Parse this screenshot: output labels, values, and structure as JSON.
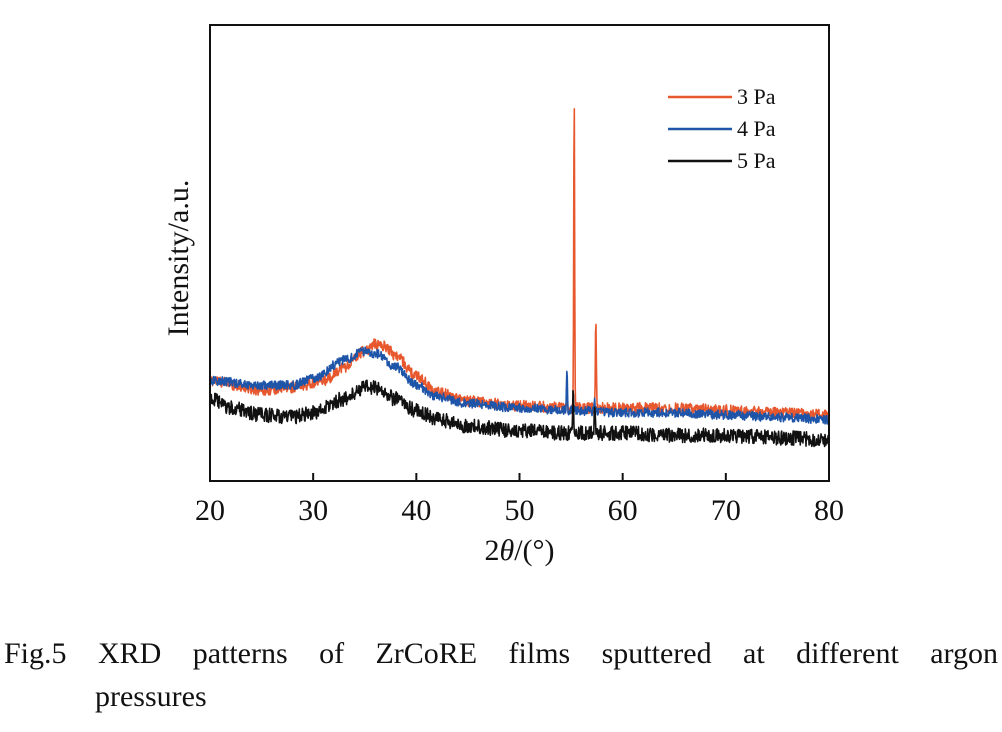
{
  "chart_data": {
    "type": "line",
    "title": "",
    "xlabel_prefix": "2",
    "xlabel_symbol": "θ",
    "xlabel_suffix": "/(°)",
    "ylabel": "Intensity/a.u.",
    "xlim": [
      20,
      80
    ],
    "ylim": [
      0,
      100
    ],
    "x_ticks": [
      20,
      30,
      40,
      50,
      60,
      70,
      80
    ],
    "y_ticks_shown": false,
    "grid": false,
    "legend": {
      "position": "top-right"
    },
    "series": [
      {
        "name": "3 Pa",
        "color": "#e8582e",
        "noise": 1.2,
        "points": [
          [
            20,
            22
          ],
          [
            25,
            20
          ],
          [
            28,
            20.5
          ],
          [
            31,
            22
          ],
          [
            33,
            25
          ],
          [
            35,
            28.5
          ],
          [
            36,
            30
          ],
          [
            37,
            29.5
          ],
          [
            38,
            27.5
          ],
          [
            40,
            23
          ],
          [
            42,
            19.5
          ],
          [
            45,
            17.5
          ],
          [
            50,
            16.5
          ],
          [
            55,
            16
          ],
          [
            60,
            16
          ],
          [
            65,
            16
          ],
          [
            70,
            15.5
          ],
          [
            75,
            15
          ],
          [
            80,
            14.5
          ]
        ],
        "peaks": [
          [
            55.3,
            86
          ],
          [
            57.4,
            36
          ]
        ]
      },
      {
        "name": "4 Pa",
        "color": "#1f55a8",
        "noise": 1.0,
        "points": [
          [
            20,
            22
          ],
          [
            25,
            21
          ],
          [
            28,
            21
          ],
          [
            30,
            22.5
          ],
          [
            33,
            26.5
          ],
          [
            35,
            28.5
          ],
          [
            36,
            28
          ],
          [
            38,
            25
          ],
          [
            40,
            21
          ],
          [
            42,
            18.5
          ],
          [
            45,
            17
          ],
          [
            50,
            16
          ],
          [
            55,
            15.5
          ],
          [
            60,
            15
          ],
          [
            65,
            15
          ],
          [
            70,
            14.5
          ],
          [
            75,
            14
          ],
          [
            80,
            13.5
          ]
        ],
        "peaks": [
          [
            54.6,
            25
          ],
          [
            57.3,
            17.5
          ]
        ]
      },
      {
        "name": "5 Pa",
        "color": "#111111",
        "noise": 1.6,
        "points": [
          [
            20,
            18
          ],
          [
            22,
            16
          ],
          [
            25,
            14.5
          ],
          [
            28,
            14
          ],
          [
            30,
            15
          ],
          [
            33,
            18
          ],
          [
            35,
            20.5
          ],
          [
            36,
            20.5
          ],
          [
            38,
            18
          ],
          [
            40,
            15.5
          ],
          [
            42,
            13.5
          ],
          [
            45,
            12
          ],
          [
            50,
            11
          ],
          [
            55,
            10.5
          ],
          [
            60,
            10.5
          ],
          [
            65,
            10
          ],
          [
            70,
            10
          ],
          [
            75,
            9.5
          ],
          [
            80,
            9
          ]
        ],
        "peaks": [
          [
            55.2,
            22
          ],
          [
            57.3,
            17.5
          ]
        ]
      }
    ]
  },
  "caption": {
    "words": [
      "Fig.5",
      "XRD",
      "patterns",
      "of",
      "ZrCoRE",
      "films",
      "sputtered",
      "at",
      "different",
      "argon"
    ],
    "line2": "pressures"
  }
}
